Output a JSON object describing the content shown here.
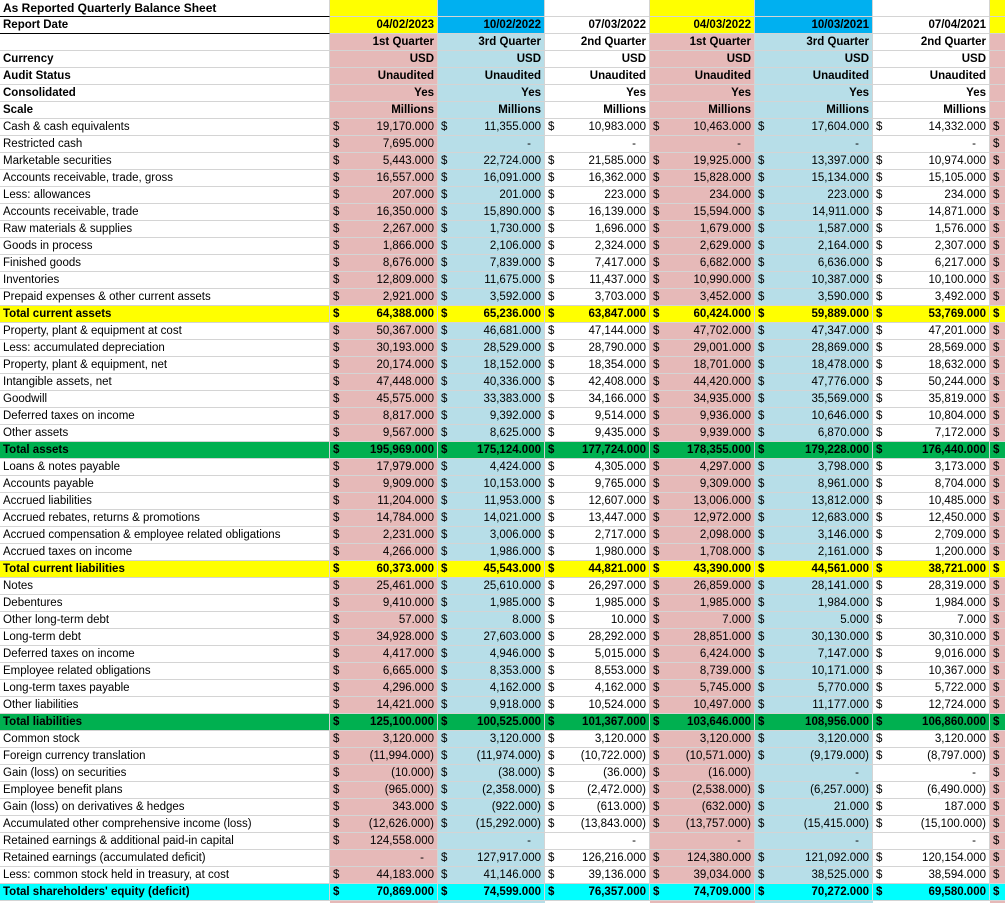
{
  "title": "As Reported Quarterly Balance Sheet",
  "currency_symbol": "$",
  "colors": {
    "gridline": "#d4d4d4",
    "column_pink": "#e6b9b8",
    "column_blue": "#b7dee8",
    "header_yellow": "#ffff00",
    "header_blue": "#00b0f0",
    "row_total_yellow": "#ffff00",
    "row_total_green": "#00b050",
    "row_total_cyan": "#00ffff"
  },
  "header": {
    "report_date_label": "Report Date",
    "currency_label": "Currency",
    "audit_status_label": "Audit Status",
    "consolidated_label": "Consolidated",
    "scale_label": "Scale",
    "columns": [
      {
        "date": "04/02/2023",
        "quarter": "1st Quarter",
        "currency": "USD",
        "audit_status": "Unaudited",
        "consolidated": "Yes",
        "scale": "Millions",
        "header_bg": "#ffff00",
        "body_bg": "#e6b9b8"
      },
      {
        "date": "10/02/2022",
        "quarter": "3rd Quarter",
        "currency": "USD",
        "audit_status": "Unaudited",
        "consolidated": "Yes",
        "scale": "Millions",
        "header_bg": "#00b0f0",
        "body_bg": "#b7dee8"
      },
      {
        "date": "07/03/2022",
        "quarter": "2nd Quarter",
        "currency": "USD",
        "audit_status": "Unaudited",
        "consolidated": "Yes",
        "scale": "Millions",
        "header_bg": "#ffffff",
        "body_bg": "#ffffff"
      },
      {
        "date": "04/03/2022",
        "quarter": "1st Quarter",
        "currency": "USD",
        "audit_status": "Unaudited",
        "consolidated": "Yes",
        "scale": "Millions",
        "header_bg": "#ffff00",
        "body_bg": "#e6b9b8"
      },
      {
        "date": "10/03/2021",
        "quarter": "3rd Quarter",
        "currency": "USD",
        "audit_status": "Unaudited",
        "consolidated": "Yes",
        "scale": "Millions",
        "header_bg": "#00b0f0",
        "body_bg": "#b7dee8"
      },
      {
        "date": "07/04/2021",
        "quarter": "2nd Quarter",
        "currency": "USD",
        "audit_status": "Unaudited",
        "consolidated": "Yes",
        "scale": "Millions",
        "header_bg": "#ffffff",
        "body_bg": "#ffffff"
      }
    ]
  },
  "partial_column": {
    "header_bg": "#ffff00",
    "body_bg": "#e6b9b8",
    "dollar_symbol": "$"
  },
  "rows": [
    {
      "label": "Cash & cash equivalents",
      "style": "normal",
      "values": [
        "19,170.000",
        "11,355.000",
        "10,983.000",
        "10,463.000",
        "17,604.000",
        "14,332.000"
      ]
    },
    {
      "label": "Restricted cash",
      "style": "normal",
      "values": [
        "7,695.000",
        "-",
        "-",
        "-",
        "-",
        "-"
      ]
    },
    {
      "label": "Marketable securities",
      "style": "normal",
      "values": [
        "5,443.000",
        "22,724.000",
        "21,585.000",
        "19,925.000",
        "13,397.000",
        "10,974.000"
      ]
    },
    {
      "label": "Accounts receivable, trade, gross",
      "style": "normal",
      "values": [
        "16,557.000",
        "16,091.000",
        "16,362.000",
        "15,828.000",
        "15,134.000",
        "15,105.000"
      ]
    },
    {
      "label": "Less: allowances",
      "style": "normal",
      "values": [
        "207.000",
        "201.000",
        "223.000",
        "234.000",
        "223.000",
        "234.000"
      ]
    },
    {
      "label": "Accounts receivable, trade",
      "style": "normal",
      "values": [
        "16,350.000",
        "15,890.000",
        "16,139.000",
        "15,594.000",
        "14,911.000",
        "14,871.000"
      ]
    },
    {
      "label": "Raw materials & supplies",
      "style": "normal",
      "values": [
        "2,267.000",
        "1,730.000",
        "1,696.000",
        "1,679.000",
        "1,587.000",
        "1,576.000"
      ]
    },
    {
      "label": "Goods in process",
      "style": "normal",
      "values": [
        "1,866.000",
        "2,106.000",
        "2,324.000",
        "2,629.000",
        "2,164.000",
        "2,307.000"
      ]
    },
    {
      "label": "Finished goods",
      "style": "normal",
      "values": [
        "8,676.000",
        "7,839.000",
        "7,417.000",
        "6,682.000",
        "6,636.000",
        "6,217.000"
      ]
    },
    {
      "label": "Inventories",
      "style": "normal",
      "values": [
        "12,809.000",
        "11,675.000",
        "11,437.000",
        "10,990.000",
        "10,387.000",
        "10,100.000"
      ]
    },
    {
      "label": "Prepaid expenses & other current assets",
      "style": "normal",
      "values": [
        "2,921.000",
        "3,592.000",
        "3,703.000",
        "3,452.000",
        "3,590.000",
        "3,492.000"
      ]
    },
    {
      "label": "Total current assets",
      "style": "yellow",
      "values": [
        "64,388.000",
        "65,236.000",
        "63,847.000",
        "60,424.000",
        "59,889.000",
        "53,769.000"
      ]
    },
    {
      "label": "Property, plant & equipment at cost",
      "style": "normal",
      "values": [
        "50,367.000",
        "46,681.000",
        "47,144.000",
        "47,702.000",
        "47,347.000",
        "47,201.000"
      ]
    },
    {
      "label": "Less: accumulated depreciation",
      "style": "normal",
      "values": [
        "30,193.000",
        "28,529.000",
        "28,790.000",
        "29,001.000",
        "28,869.000",
        "28,569.000"
      ]
    },
    {
      "label": "Property, plant & equipment, net",
      "style": "normal",
      "values": [
        "20,174.000",
        "18,152.000",
        "18,354.000",
        "18,701.000",
        "18,478.000",
        "18,632.000"
      ]
    },
    {
      "label": "Intangible assets, net",
      "style": "normal",
      "values": [
        "47,448.000",
        "40,336.000",
        "42,408.000",
        "44,420.000",
        "47,776.000",
        "50,244.000"
      ]
    },
    {
      "label": "Goodwill",
      "style": "normal",
      "values": [
        "45,575.000",
        "33,383.000",
        "34,166.000",
        "34,935.000",
        "35,569.000",
        "35,819.000"
      ]
    },
    {
      "label": "Deferred taxes on income",
      "style": "normal",
      "values": [
        "8,817.000",
        "9,392.000",
        "9,514.000",
        "9,936.000",
        "10,646.000",
        "10,804.000"
      ]
    },
    {
      "label": "Other assets",
      "style": "normal",
      "values": [
        "9,567.000",
        "8,625.000",
        "9,435.000",
        "9,939.000",
        "6,870.000",
        "7,172.000"
      ]
    },
    {
      "label": "Total assets",
      "style": "green",
      "values": [
        "195,969.000",
        "175,124.000",
        "177,724.000",
        "178,355.000",
        "179,228.000",
        "176,440.000"
      ]
    },
    {
      "label": "Loans & notes payable",
      "style": "normal",
      "values": [
        "17,979.000",
        "4,424.000",
        "4,305.000",
        "4,297.000",
        "3,798.000",
        "3,173.000"
      ]
    },
    {
      "label": "Accounts payable",
      "style": "normal",
      "values": [
        "9,909.000",
        "10,153.000",
        "9,765.000",
        "9,309.000",
        "8,961.000",
        "8,704.000"
      ]
    },
    {
      "label": "Accrued liabilities",
      "style": "normal",
      "values": [
        "11,204.000",
        "11,953.000",
        "12,607.000",
        "13,006.000",
        "13,812.000",
        "10,485.000"
      ]
    },
    {
      "label": "Accrued rebates, returns & promotions",
      "style": "normal",
      "values": [
        "14,784.000",
        "14,021.000",
        "13,447.000",
        "12,972.000",
        "12,683.000",
        "12,450.000"
      ]
    },
    {
      "label": "Accrued compensation & employee related obligations",
      "style": "normal",
      "values": [
        "2,231.000",
        "3,006.000",
        "2,717.000",
        "2,098.000",
        "3,146.000",
        "2,709.000"
      ]
    },
    {
      "label": "Accrued taxes on income",
      "style": "normal",
      "values": [
        "4,266.000",
        "1,986.000",
        "1,980.000",
        "1,708.000",
        "2,161.000",
        "1,200.000"
      ]
    },
    {
      "label": "Total current liabilities",
      "style": "yellow",
      "values": [
        "60,373.000",
        "45,543.000",
        "44,821.000",
        "43,390.000",
        "44,561.000",
        "38,721.000"
      ]
    },
    {
      "label": "Notes",
      "style": "normal",
      "values": [
        "25,461.000",
        "25,610.000",
        "26,297.000",
        "26,859.000",
        "28,141.000",
        "28,319.000"
      ]
    },
    {
      "label": "Debentures",
      "style": "normal",
      "values": [
        "9,410.000",
        "1,985.000",
        "1,985.000",
        "1,985.000",
        "1,984.000",
        "1,984.000"
      ]
    },
    {
      "label": "Other long-term debt",
      "style": "normal",
      "values": [
        "57.000",
        "8.000",
        "10.000",
        "7.000",
        "5.000",
        "7.000"
      ]
    },
    {
      "label": "Long-term debt",
      "style": "normal",
      "values": [
        "34,928.000",
        "27,603.000",
        "28,292.000",
        "28,851.000",
        "30,130.000",
        "30,310.000"
      ]
    },
    {
      "label": "Deferred taxes on income",
      "style": "normal",
      "values": [
        "4,417.000",
        "4,946.000",
        "5,015.000",
        "6,424.000",
        "7,147.000",
        "9,016.000"
      ]
    },
    {
      "label": "Employee related obligations",
      "style": "normal",
      "values": [
        "6,665.000",
        "8,353.000",
        "8,553.000",
        "8,739.000",
        "10,171.000",
        "10,367.000"
      ]
    },
    {
      "label": "Long-term taxes payable",
      "style": "normal",
      "values": [
        "4,296.000",
        "4,162.000",
        "4,162.000",
        "5,745.000",
        "5,770.000",
        "5,722.000"
      ]
    },
    {
      "label": "Other liabilities",
      "style": "normal",
      "values": [
        "14,421.000",
        "9,918.000",
        "10,524.000",
        "10,497.000",
        "11,177.000",
        "12,724.000"
      ]
    },
    {
      "label": "Total liabilities",
      "style": "green",
      "values": [
        "125,100.000",
        "100,525.000",
        "101,367.000",
        "103,646.000",
        "108,956.000",
        "106,860.000"
      ]
    },
    {
      "label": "Common stock",
      "style": "normal",
      "values": [
        "3,120.000",
        "3,120.000",
        "3,120.000",
        "3,120.000",
        "3,120.000",
        "3,120.000"
      ]
    },
    {
      "label": "Foreign currency translation",
      "style": "normal",
      "values": [
        "(11,994.000)",
        "(11,974.000)",
        "(10,722.000)",
        "(10,571.000)",
        "(9,179.000)",
        "(8,797.000)"
      ]
    },
    {
      "label": "Gain (loss) on securities",
      "style": "normal",
      "values": [
        "(10.000)",
        "(38.000)",
        "(36.000)",
        "(16.000)",
        "-",
        "-"
      ]
    },
    {
      "label": "Employee benefit plans",
      "style": "normal",
      "values": [
        "(965.000)",
        "(2,358.000)",
        "(2,472.000)",
        "(2,538.000)",
        "(6,257.000)",
        "(6,490.000)"
      ]
    },
    {
      "label": "Gain (loss) on derivatives & hedges",
      "style": "normal",
      "values": [
        "343.000",
        "(922.000)",
        "(613.000)",
        "(632.000)",
        "21.000",
        "187.000"
      ]
    },
    {
      "label": "Accumulated other comprehensive income (loss)",
      "style": "normal",
      "values": [
        "(12,626.000)",
        "(15,292.000)",
        "(13,843.000)",
        "(13,757.000)",
        "(15,415.000)",
        "(15,100.000)"
      ]
    },
    {
      "label": "Retained earnings & additional paid-in capital",
      "style": "normal",
      "values": [
        "124,558.000",
        "-",
        "-",
        "-",
        "-",
        "-"
      ]
    },
    {
      "label": "Retained earnings (accumulated deficit)",
      "style": "normal",
      "values": [
        "-",
        "127,917.000",
        "126,216.000",
        "124,380.000",
        "121,092.000",
        "120,154.000"
      ]
    },
    {
      "label": "Less: common stock held in treasury, at cost",
      "style": "normal",
      "values": [
        "44,183.000",
        "41,146.000",
        "39,136.000",
        "39,034.000",
        "38,525.000",
        "38,594.000"
      ]
    },
    {
      "label": "Total shareholders' equity (deficit)",
      "style": "cyan",
      "values": [
        "70,869.000",
        "74,599.000",
        "76,357.000",
        "74,709.000",
        "70,272.000",
        "69,580.000"
      ]
    }
  ]
}
